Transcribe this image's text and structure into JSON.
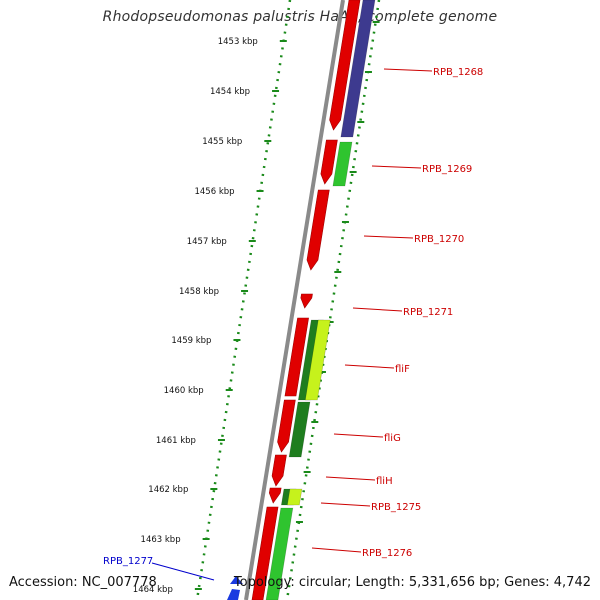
{
  "title": "Rhodopseudomonas palustris HaA2, complete genome",
  "accession": "Accession: NC_007778",
  "summary": "Topology: circular; Length: 5,331,656 bp; Genes: 4,742",
  "colors": {
    "forward_cds": "#e00000",
    "reverse_cds_blue": "#3d3a8f",
    "reverse_cds_green": "#2fc42f",
    "reverse_cds_darkgreen": "#1e7d1e",
    "reverse_cds_lime": "#c6f21c",
    "backbone": "#8a8a8a",
    "ruler_dots": "#1a8a1a",
    "gene_label": "#cc0000",
    "highlight_label": "#0000cc"
  },
  "scale_labels": [
    "1453 kbp",
    "1454 kbp",
    "1455 kbp",
    "1456 kbp",
    "1457 kbp",
    "1458 kbp",
    "1459 kbp",
    "1460 kbp",
    "1461 kbp",
    "1462 kbp",
    "1463 kbp",
    "1464 kbp"
  ],
  "gene_labels": [
    "RPB_1268",
    "RPB_1269",
    "RPB_1270",
    "RPB_1271",
    "fliF",
    "fliG",
    "fliH",
    "RPB_1275",
    "RPB_1276"
  ],
  "highlight_label": "RPB_1277"
}
